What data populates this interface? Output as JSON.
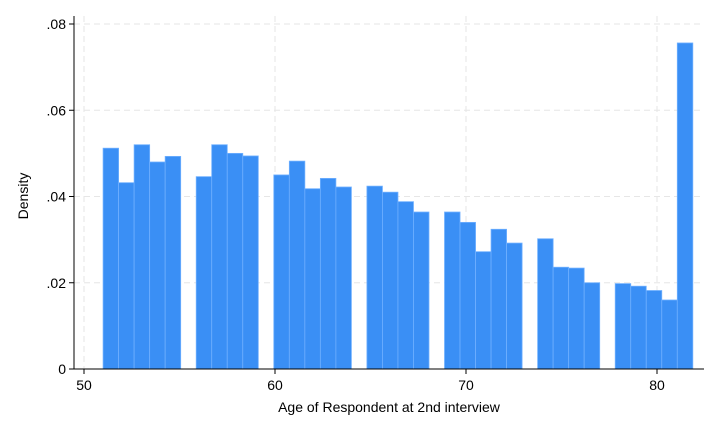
{
  "chart_data": {
    "type": "bar",
    "subtype": "histogram",
    "title": "",
    "xlabel": "Age of Respondent at 2nd interview",
    "ylabel": "Density",
    "xlim": [
      50,
      82.5
    ],
    "ylim": [
      0,
      0.08
    ],
    "x_ticks": [
      50,
      60,
      70,
      80
    ],
    "x_tick_labels": [
      "50",
      "60",
      "70",
      "80"
    ],
    "y_ticks": [
      0,
      0.02,
      0.04,
      0.06,
      0.08
    ],
    "y_tick_labels": [
      "0",
      ".02",
      ".04",
      ".06",
      ".08"
    ],
    "grid": true,
    "bar_color": "#3a8ff5",
    "bar_edge_color": "#6fb0ff",
    "bin_width": 0.8125,
    "bins": [
      {
        "x_start": 51.0,
        "value": 0.0512
      },
      {
        "x_start": 51.8125,
        "value": 0.0432
      },
      {
        "x_start": 52.625,
        "value": 0.052
      },
      {
        "x_start": 53.4375,
        "value": 0.048
      },
      {
        "x_start": 54.25,
        "value": 0.0493
      },
      {
        "x_start": 55.0625,
        "value": 0
      },
      {
        "x_start": 55.875,
        "value": 0.0446
      },
      {
        "x_start": 56.6875,
        "value": 0.052
      },
      {
        "x_start": 57.5,
        "value": 0.05
      },
      {
        "x_start": 58.3125,
        "value": 0.0494
      },
      {
        "x_start": 59.125,
        "value": 0
      },
      {
        "x_start": 59.9375,
        "value": 0.045
      },
      {
        "x_start": 60.75,
        "value": 0.0482
      },
      {
        "x_start": 61.5625,
        "value": 0.0418
      },
      {
        "x_start": 62.375,
        "value": 0.0442
      },
      {
        "x_start": 63.1875,
        "value": 0.0422
      },
      {
        "x_start": 64.0,
        "value": 0
      },
      {
        "x_start": 64.8125,
        "value": 0.0424
      },
      {
        "x_start": 65.625,
        "value": 0.041
      },
      {
        "x_start": 66.4375,
        "value": 0.0388
      },
      {
        "x_start": 67.25,
        "value": 0.0364
      },
      {
        "x_start": 68.0625,
        "value": 0
      },
      {
        "x_start": 68.875,
        "value": 0.0364
      },
      {
        "x_start": 69.6875,
        "value": 0.034
      },
      {
        "x_start": 70.5,
        "value": 0.0272
      },
      {
        "x_start": 71.3125,
        "value": 0.0324
      },
      {
        "x_start": 72.125,
        "value": 0.0292
      },
      {
        "x_start": 72.9375,
        "value": 0
      },
      {
        "x_start": 73.75,
        "value": 0.0302
      },
      {
        "x_start": 74.5625,
        "value": 0.0236
      },
      {
        "x_start": 75.375,
        "value": 0.0234
      },
      {
        "x_start": 76.1875,
        "value": 0.02
      },
      {
        "x_start": 77.0,
        "value": 0
      },
      {
        "x_start": 77.8125,
        "value": 0.0198
      },
      {
        "x_start": 78.625,
        "value": 0.0192
      },
      {
        "x_start": 79.4375,
        "value": 0.0182
      },
      {
        "x_start": 80.25,
        "value": 0.016
      },
      {
        "x_start": 81.0625,
        "value": 0.0756
      }
    ]
  }
}
